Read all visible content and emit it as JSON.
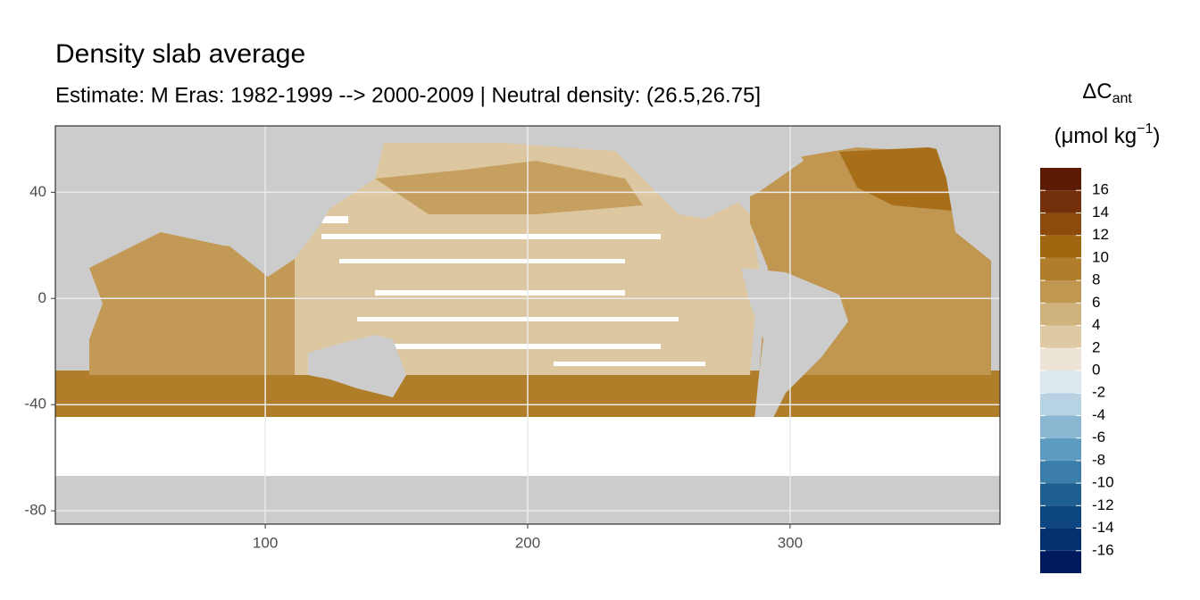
{
  "chart_data": {
    "type": "raster-map",
    "title": "Density slab average",
    "subtitle": "Estimate: M Eras: 1982-1999 --> 2000-2009 | Neutral density: (26.5,26.75]",
    "xlim": [
      20,
      380
    ],
    "ylim": [
      -85,
      65
    ],
    "xticks": [
      100,
      200,
      300
    ],
    "yticks": [
      40,
      0,
      -40,
      -80
    ],
    "grid": true,
    "legend": {
      "title": "ΔC",
      "title_sub": "ant",
      "unit_pre": "(μmol kg",
      "unit_sup": "−1",
      "unit_post": ")",
      "lim": [
        -18,
        18
      ],
      "breaks": [
        -16,
        -14,
        -12,
        -10,
        -8,
        -6,
        -4,
        -2,
        0,
        2,
        4,
        6,
        8,
        10,
        12,
        14,
        16
      ],
      "colors": [
        "#001a5e",
        "#04306f",
        "#0d4680",
        "#1e5f91",
        "#3a7ea9",
        "#5e9bc0",
        "#8ab8d3",
        "#b7d3e3",
        "#dce8ee",
        "#ebe3d6",
        "#ddcaa4",
        "#cfb27c",
        "#bf9750",
        "#b07e2a",
        "#a0660f",
        "#8c4a0c",
        "#74300a",
        "#5a1a04"
      ]
    }
  }
}
